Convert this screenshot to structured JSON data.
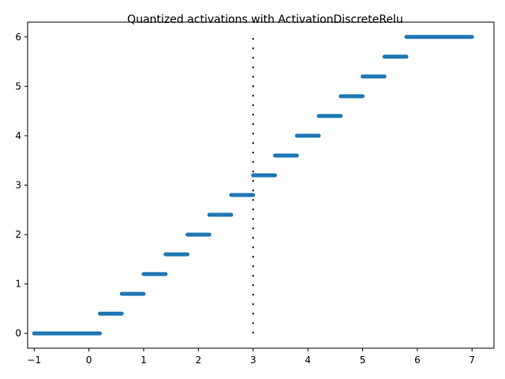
{
  "chart_data": {
    "type": "line",
    "title": "Quantized activations with ActivationDiscreteRelu",
    "xlabel": "",
    "ylabel": "",
    "xlim": [
      -1.12,
      7.4
    ],
    "ylim": [
      -0.3,
      6.3
    ],
    "xticks": [
      -1,
      0,
      1,
      2,
      3,
      4,
      5,
      6,
      7
    ],
    "xtick_labels": [
      "−1",
      "0",
      "1",
      "2",
      "3",
      "4",
      "5",
      "6",
      "7"
    ],
    "yticks": [
      0,
      1,
      2,
      3,
      4,
      5,
      6
    ],
    "ytick_labels": [
      "0",
      "1",
      "2",
      "3",
      "4",
      "5",
      "6"
    ],
    "grid": false,
    "series_color": "#1f77b4",
    "segments": [
      {
        "x": [
          -1.0,
          0.2
        ],
        "y": 0.0
      },
      {
        "x": [
          0.2,
          0.6
        ],
        "y": 0.4
      },
      {
        "x": [
          0.6,
          1.0
        ],
        "y": 0.8
      },
      {
        "x": [
          1.0,
          1.4
        ],
        "y": 1.2
      },
      {
        "x": [
          1.4,
          1.8
        ],
        "y": 1.6
      },
      {
        "x": [
          1.8,
          2.2
        ],
        "y": 2.0
      },
      {
        "x": [
          2.2,
          2.6
        ],
        "y": 2.4
      },
      {
        "x": [
          2.6,
          3.0
        ],
        "y": 2.8
      },
      {
        "x": [
          3.0,
          3.4
        ],
        "y": 3.2
      },
      {
        "x": [
          3.4,
          3.8
        ],
        "y": 3.6
      },
      {
        "x": [
          3.8,
          4.2
        ],
        "y": 4.0
      },
      {
        "x": [
          4.2,
          4.6
        ],
        "y": 4.4
      },
      {
        "x": [
          4.6,
          5.0
        ],
        "y": 4.8
      },
      {
        "x": [
          5.0,
          5.4
        ],
        "y": 5.2
      },
      {
        "x": [
          5.4,
          5.8
        ],
        "y": 5.6
      },
      {
        "x": [
          5.8,
          7.0
        ],
        "y": 6.0
      }
    ],
    "vline": {
      "x": 3,
      "y": [
        0,
        6
      ],
      "style": "dotted",
      "color": "#000000"
    }
  }
}
